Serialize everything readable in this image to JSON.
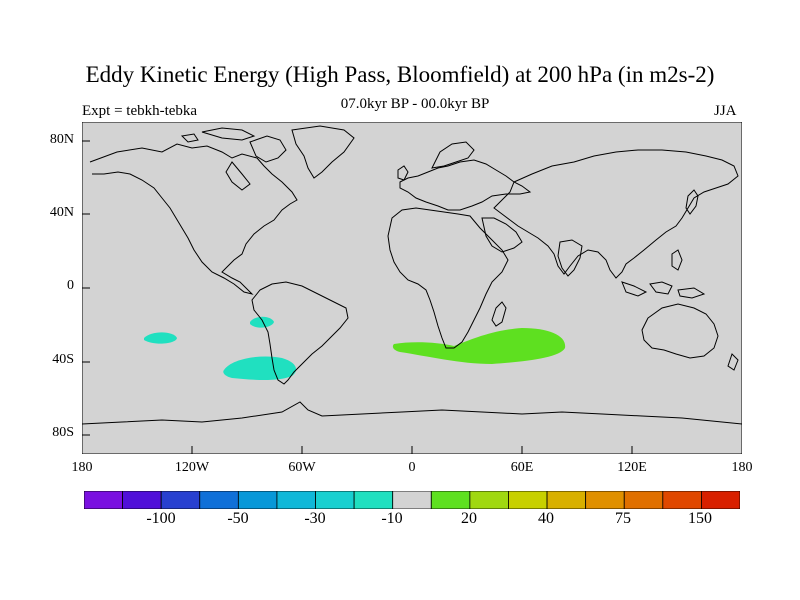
{
  "title": "Eddy Kinetic Energy (High Pass, Bloomfield) at 200 hPa (in m2s-2)",
  "subtitle": "07.0kyr BP - 00.0kyr BP",
  "left_label": "Expt = tebkh-tebka",
  "right_label": "JJA",
  "y_ticks": [
    "80N",
    "40N",
    "0",
    "40S",
    "80S"
  ],
  "x_ticks": [
    "180",
    "120W",
    "60W",
    "0",
    "60E",
    "120E",
    "180"
  ],
  "colorbar": {
    "colors": [
      "#7a10e0",
      "#5010d8",
      "#2840d0",
      "#1070d8",
      "#0898d8",
      "#10b8d8",
      "#18d0d0",
      "#20e0c0",
      "#d3d3d3",
      "#5ee020",
      "#a0d810",
      "#c8d000",
      "#d8b000",
      "#e09000",
      "#e07000",
      "#e04800",
      "#d82000"
    ],
    "labels": [
      "-100",
      "-50",
      "-30",
      "-10",
      "20",
      "40",
      "75",
      "150"
    ]
  },
  "map": {
    "land_color": "#d3d3d3",
    "anomalies": [
      {
        "region": "South Pacific west",
        "lon": -135,
        "lat": -28,
        "value": -10,
        "color": "#20e0c0"
      },
      {
        "region": "Off Chile",
        "lon": -81,
        "lat": -19,
        "value": -10,
        "color": "#20e0c0"
      },
      {
        "region": "Southeast Pacific",
        "lon": -82,
        "lat": -44,
        "value": -10,
        "color": "#20e0c0"
      },
      {
        "region": "South Indian Ocean",
        "lon": 45,
        "lat": -33,
        "value": 20,
        "color": "#5ee020"
      }
    ]
  }
}
